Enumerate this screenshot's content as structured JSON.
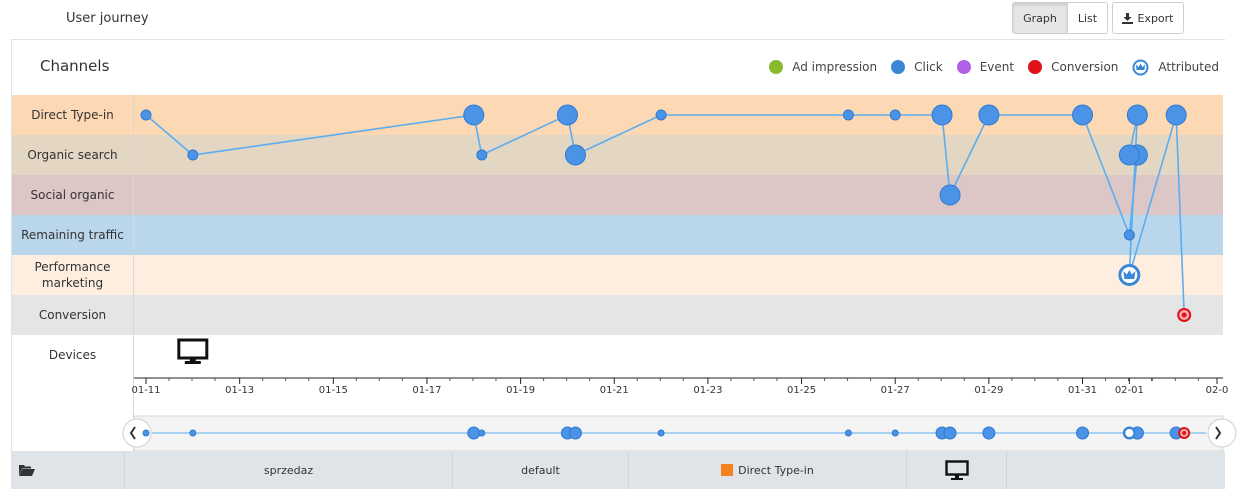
{
  "header": {
    "title": "User journey"
  },
  "toolbar": {
    "graph_label": "Graph",
    "list_label": "List",
    "export_label": "Export",
    "active_view": "Graph"
  },
  "channels": {
    "title": "Channels",
    "legend": [
      {
        "label": "Ad impression",
        "color": "#8aba2c"
      },
      {
        "label": "Click",
        "color": "#3a87d6"
      },
      {
        "label": "Event",
        "color": "#b060e6"
      },
      {
        "label": "Conversion",
        "color": "#e0131a"
      },
      {
        "label": "Attributed",
        "icon": "crown-icon",
        "color": "#3a87d6"
      }
    ]
  },
  "rows": [
    {
      "label": "Direct Type-in",
      "color": "#fcd8b4"
    },
    {
      "label": "Organic search",
      "color": "#e3d6c2"
    },
    {
      "label": "Social organic",
      "color": "#dcc6c6"
    },
    {
      "label": "Remaining traffic",
      "color": "#bad6ea"
    },
    {
      "label": "Performance marketing",
      "color": "#fdeee0"
    },
    {
      "label": "Conversion",
      "color": "#e5e5e5"
    },
    {
      "label": "Devices",
      "color": "#ffffff"
    }
  ],
  "devices": [
    {
      "date": "2020-01-12",
      "icon": "desktop-icon"
    }
  ],
  "axis": {
    "start": "2020-01-11",
    "end": "2020-02-03",
    "ticks": [
      "01-11",
      "01-13",
      "01-15",
      "01-17",
      "01-19",
      "01-21",
      "01-23",
      "01-25",
      "01-27",
      "01-29",
      "01-31",
      "02-01",
      "02-0"
    ]
  },
  "chart_data": {
    "type": "scatter",
    "x_type": "date",
    "xlim": [
      "2020-01-11",
      "2020-02-03"
    ],
    "categories": [
      "Direct Type-in",
      "Organic search",
      "Social organic",
      "Remaining traffic",
      "Performance marketing",
      "Conversion"
    ],
    "journey": [
      {
        "date": "2020-01-11",
        "channel": "Direct Type-in",
        "type": "Click",
        "size": "small"
      },
      {
        "date": "2020-01-12",
        "channel": "Organic search",
        "type": "Click",
        "size": "small"
      },
      {
        "date": "2020-01-18",
        "channel": "Direct Type-in",
        "type": "Click",
        "size": "large"
      },
      {
        "date": "2020-01-18",
        "channel": "Organic search",
        "type": "Click",
        "size": "small"
      },
      {
        "date": "2020-01-20",
        "channel": "Direct Type-in",
        "type": "Click",
        "size": "large"
      },
      {
        "date": "2020-01-20",
        "channel": "Organic search",
        "type": "Click",
        "size": "large"
      },
      {
        "date": "2020-01-22",
        "channel": "Direct Type-in",
        "type": "Click",
        "size": "small"
      },
      {
        "date": "2020-01-26",
        "channel": "Direct Type-in",
        "type": "Click",
        "size": "small"
      },
      {
        "date": "2020-01-27",
        "channel": "Direct Type-in",
        "type": "Click",
        "size": "small"
      },
      {
        "date": "2020-01-28",
        "channel": "Direct Type-in",
        "type": "Click",
        "size": "large"
      },
      {
        "date": "2020-01-28",
        "channel": "Social organic",
        "type": "Click",
        "size": "large"
      },
      {
        "date": "2020-01-29",
        "channel": "Direct Type-in",
        "type": "Click",
        "size": "large"
      },
      {
        "date": "2020-01-31",
        "channel": "Direct Type-in",
        "type": "Click",
        "size": "large"
      },
      {
        "date": "2020-02-01",
        "channel": "Remaining traffic",
        "type": "Click",
        "size": "small"
      },
      {
        "date": "2020-02-01",
        "channel": "Organic search",
        "type": "Click",
        "size": "large"
      },
      {
        "date": "2020-02-01",
        "channel": "Organic search",
        "type": "Click",
        "size": "large"
      },
      {
        "date": "2020-02-01",
        "channel": "Direct Type-in",
        "type": "Click",
        "size": "large"
      },
      {
        "date": "2020-02-01",
        "channel": "Performance marketing",
        "type": "Attributed",
        "size": "large"
      },
      {
        "date": "2020-02-02",
        "channel": "Direct Type-in",
        "type": "Click",
        "size": "large"
      },
      {
        "date": "2020-02-02",
        "channel": "Conversion",
        "type": "Conversion",
        "size": "small"
      }
    ]
  },
  "footer": {
    "cells": [
      "",
      "sprzedaz",
      "default",
      "Direct Type-in",
      "",
      ""
    ],
    "swatch_color": "#f5821f"
  }
}
